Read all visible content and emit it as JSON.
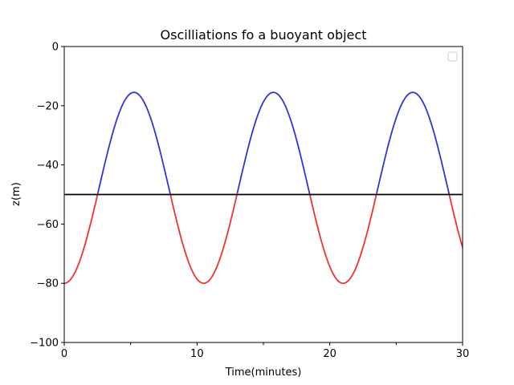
{
  "chart_data": {
    "type": "line",
    "title": "Oscilliations fo a buoyant object",
    "xlabel": "Time(minutes)",
    "ylabel": "z(m)",
    "xlim": [
      0,
      30
    ],
    "ylim": [
      -100,
      0
    ],
    "x_ticks": [
      0,
      10,
      20,
      30
    ],
    "x_minor_ticks": [
      5,
      15,
      25
    ],
    "y_ticks": [
      0,
      -20,
      -40,
      -60,
      -80,
      -100
    ],
    "grid": false,
    "legend": {
      "placement": "top-right",
      "entries": []
    },
    "equilibrium_line": {
      "y": -50,
      "color": "#000000"
    },
    "oscillation": {
      "equilibrium": -47.75,
      "amplitude": 32.25,
      "period_minutes": 10.5,
      "start": -80,
      "x_start": 0,
      "x_end": 30,
      "color_above": "#3333dd",
      "color_below": "#ee3333"
    },
    "series": [
      {
        "color": "#3333dd",
        "segments": [
          {
            "x": [
              2.55,
              5.25,
              7.95
            ],
            "y": [
              -50,
              -15.5,
              -50
            ]
          },
          {
            "x": [
              13.05,
              15.75,
              18.45
            ],
            "y": [
              -50,
              -15.5,
              -50
            ]
          },
          {
            "x": [
              23.55,
              26.25,
              28.95
            ],
            "y": [
              -50,
              -15.5,
              -50
            ]
          }
        ]
      },
      {
        "color": "#ee3333",
        "segments": [
          {
            "x": [
              0,
              2.55
            ],
            "y": [
              -80,
              -50
            ]
          },
          {
            "x": [
              7.95,
              10.5,
              13.05
            ],
            "y": [
              -50,
              -80,
              -50
            ]
          },
          {
            "x": [
              18.45,
              21.0,
              23.55
            ],
            "y": [
              -50,
              -80,
              -50
            ]
          },
          {
            "x": [
              28.95,
              30
            ],
            "y": [
              -50,
              -68.5
            ]
          }
        ]
      }
    ]
  }
}
